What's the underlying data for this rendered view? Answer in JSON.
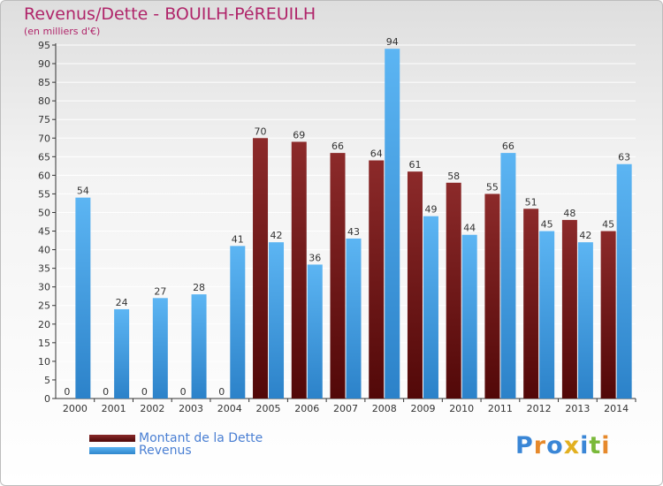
{
  "chart_data": {
    "type": "bar",
    "title": "Revenus/Dette - BOUILH-PéREUILH",
    "subtitle": "(en milliers d'€)",
    "xlabel": "",
    "ylabel": "",
    "ylim": [
      0,
      95
    ],
    "ytick_step": 5,
    "grid": true,
    "categories": [
      "2000",
      "2001",
      "2002",
      "2003",
      "2004",
      "2005",
      "2006",
      "2007",
      "2008",
      "2009",
      "2010",
      "2011",
      "2012",
      "2013",
      "2014"
    ],
    "series": [
      {
        "name": "Montant de la Dette",
        "color": "#7a1b1b",
        "values": [
          0,
          0,
          0,
          0,
          0,
          70,
          69,
          66,
          64,
          61,
          58,
          55,
          51,
          48,
          45
        ]
      },
      {
        "name": "Revenus",
        "color": "#4aa3e6",
        "values": [
          54,
          24,
          27,
          28,
          41,
          42,
          36,
          43,
          94,
          49,
          44,
          66,
          45,
          42,
          63
        ]
      }
    ]
  },
  "legend": {
    "items": [
      {
        "label": "Montant de la Dette",
        "color": "#6b1515"
      },
      {
        "label": "Revenus",
        "color": "#4aa3e6"
      }
    ]
  },
  "logo": {
    "text": "Proxiti"
  }
}
